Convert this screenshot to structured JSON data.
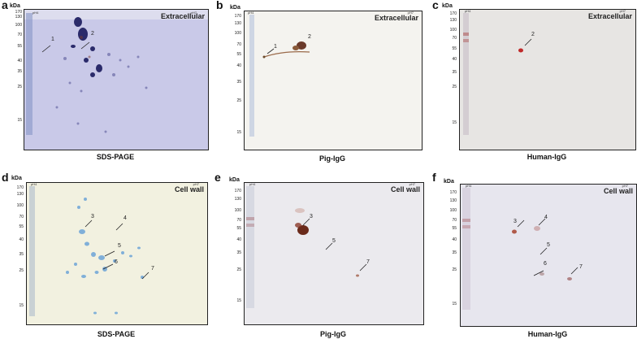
{
  "markers_top": [
    "170",
    "130",
    "100",
    "70",
    "55",
    "40",
    "35",
    "25",
    "15"
  ],
  "markers_bottom": [
    "170",
    "130",
    "100",
    "70",
    "55",
    "40",
    "35",
    "25",
    "15"
  ],
  "ph_left": "pH4",
  "ph_right": "pH7",
  "kda": "kDa",
  "panels": [
    {
      "id": "a",
      "corner": "Extracellular",
      "caption": "SDS-PAGE",
      "spots": [
        "1",
        "2"
      ]
    },
    {
      "id": "b",
      "corner": "Extracellular",
      "caption": "Pig-IgG",
      "spots": [
        "1",
        "2"
      ]
    },
    {
      "id": "c",
      "corner": "Extracellular",
      "caption": "Human-IgG",
      "spots": [
        "2"
      ]
    },
    {
      "id": "d",
      "corner": "Cell wall",
      "caption": "SDS-PAGE",
      "spots": [
        "3",
        "4",
        "5",
        "6",
        "7"
      ]
    },
    {
      "id": "e",
      "corner": "Cell wall",
      "caption": "Pig-IgG",
      "spots": [
        "3",
        "5",
        "7"
      ]
    },
    {
      "id": "f",
      "corner": "Cell wall",
      "caption": "Human-IgG",
      "spots": [
        "3",
        "4",
        "5",
        "6",
        "7"
      ]
    }
  ],
  "colors": {
    "sds": "#c9c9e6",
    "membrane": "#f4f3ef",
    "membrane_human": "#e6e4e2",
    "border": "#222222"
  }
}
